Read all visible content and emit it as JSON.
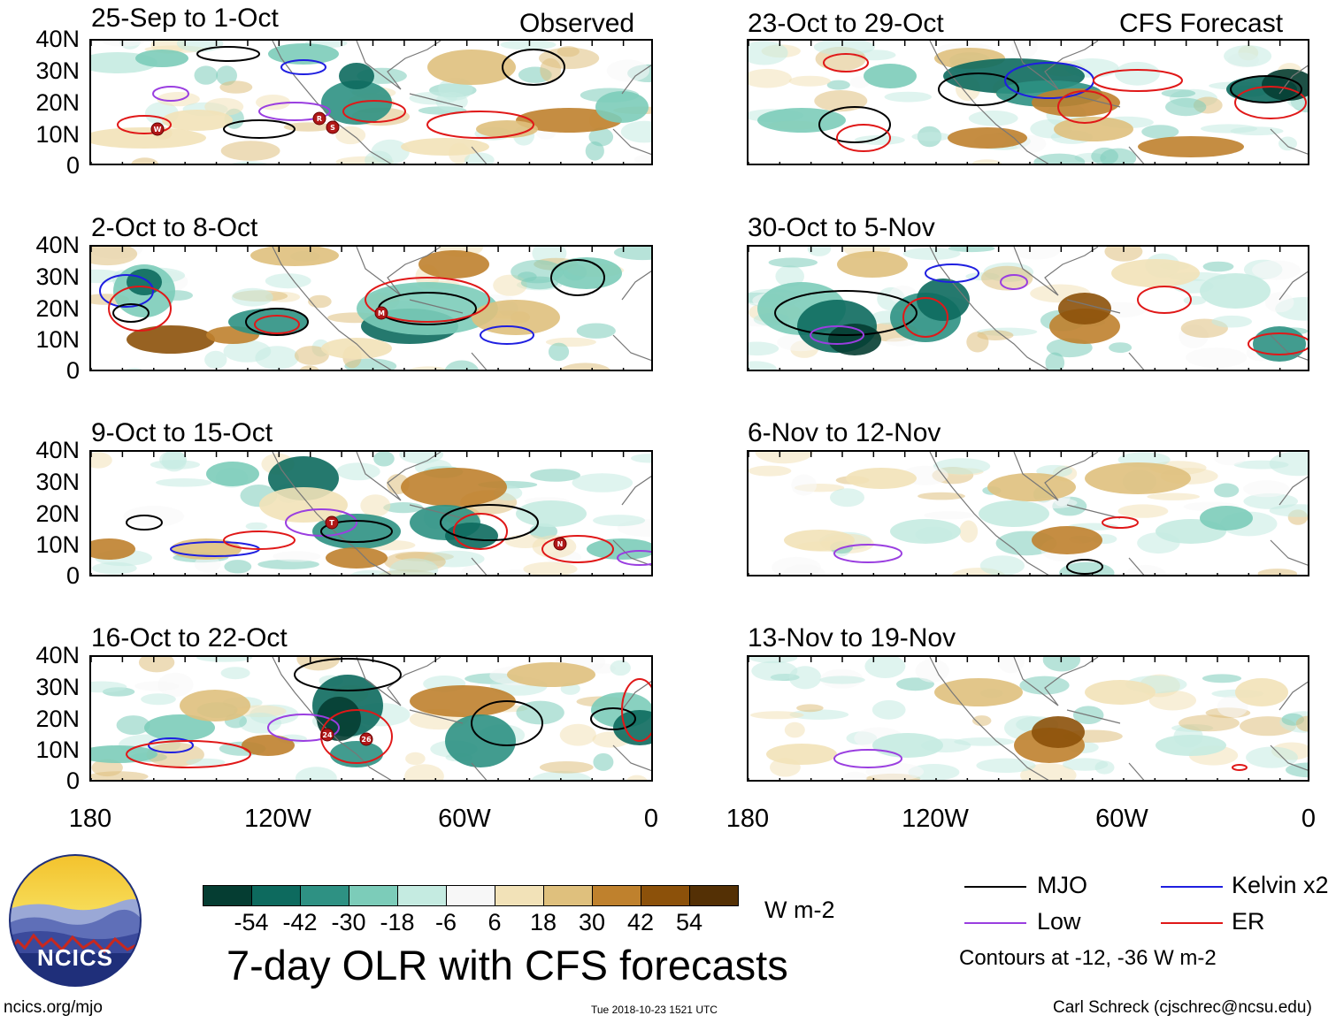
{
  "chart_data": {
    "type": "heatmap",
    "title": "7-day OLR with CFS forecasts",
    "variable": "OLR anomaly",
    "units": "W m-2",
    "columns": [
      {
        "name": "Observed",
        "panels": [
          "25-Sep to 1-Oct",
          "2-Oct to 8-Oct",
          "9-Oct to 15-Oct",
          "16-Oct to 22-Oct"
        ]
      },
      {
        "name": "CFS Forecast",
        "panels": [
          "23-Oct to 29-Oct",
          "30-Oct to 5-Nov",
          "6-Nov to 12-Nov",
          "13-Nov to 19-Nov"
        ]
      }
    ],
    "y_axis": {
      "ticks": [
        "40N",
        "30N",
        "20N",
        "10N",
        "0"
      ],
      "range": [
        0,
        40
      ]
    },
    "x_axis": {
      "ticks": [
        "180",
        "120W",
        "60W",
        "0"
      ],
      "range": [
        -180,
        0
      ]
    },
    "colorbar": {
      "ticks": [
        "-54",
        "-42",
        "-30",
        "-18",
        "-6",
        "6",
        "18",
        "30",
        "42",
        "54"
      ],
      "colors": [
        "#053d32",
        "#0d6a5e",
        "#2e9183",
        "#7cccb9",
        "#c5ebe1",
        "#f7f7f7",
        "#f2e2b8",
        "#dfc07d",
        "#bf812d",
        "#8c510a",
        "#543005"
      ]
    },
    "legend": {
      "entries": [
        {
          "label": "MJO",
          "color": "#000000"
        },
        {
          "label": "Kelvin x2",
          "color": "#1f1fe0"
        },
        {
          "label": "Low",
          "color": "#9a3ee0"
        },
        {
          "label": "ER",
          "color": "#e01818"
        }
      ],
      "note": "Contours at -12, -36 W m-2"
    },
    "storm_markers": [
      "W",
      "R",
      "S",
      "M",
      "T",
      "N",
      "24",
      "26"
    ]
  },
  "footer": {
    "logo_text": "NCICS",
    "site": "ncics.org/mjo",
    "timestamp": "Tue 2018-10-23 1521 UTC",
    "author": "Carl Schreck (cjschrec@ncsu.edu)"
  }
}
